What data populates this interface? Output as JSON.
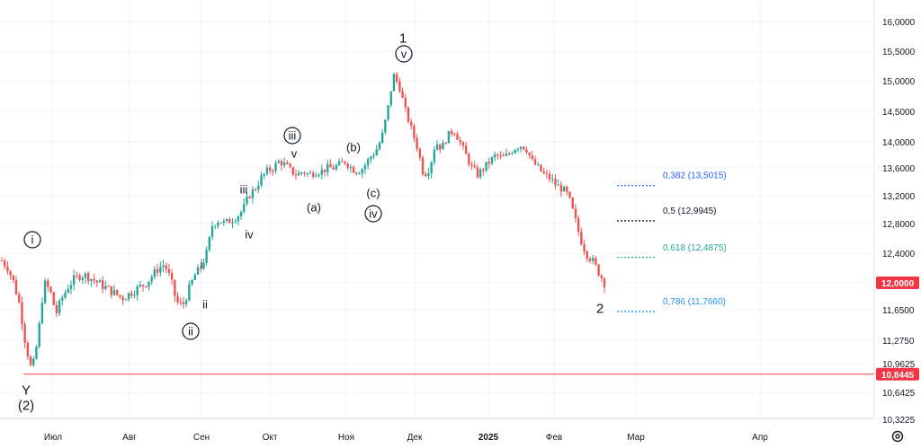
{
  "chart_data": {
    "type": "candlestick",
    "y_ticks": [
      "16,0000",
      "15,5000",
      "15,0000",
      "14,5000",
      "14,0000",
      "13,6000",
      "13,2000",
      "12,8000",
      "12,4000",
      "12,0000",
      "11,6500",
      "11,2750",
      "10,9625",
      "10,6425",
      "10,3225"
    ],
    "x_ticks": [
      {
        "label": "Июл",
        "bold": false
      },
      {
        "label": "Авг",
        "bold": false
      },
      {
        "label": "Сен",
        "bold": false
      },
      {
        "label": "Окт",
        "bold": false
      },
      {
        "label": "Ноя",
        "bold": false
      },
      {
        "label": "Дек",
        "bold": false
      },
      {
        "label": "2025",
        "bold": true
      },
      {
        "label": "Фев",
        "bold": false
      },
      {
        "label": "Мар",
        "bold": false
      },
      {
        "label": "Апр",
        "bold": false
      }
    ],
    "price_path": [
      12.3,
      12.2,
      12.0,
      11.7,
      11.2,
      10.85,
      11.3,
      12.0,
      11.9,
      11.6,
      11.8,
      11.95,
      12.05,
      12.1,
      12.1,
      12.05,
      12.0,
      11.95,
      11.9,
      11.85,
      11.8,
      11.85,
      11.9,
      11.95,
      12.0,
      12.1,
      12.2,
      12.25,
      12.05,
      11.75,
      11.7,
      11.9,
      12.1,
      12.2,
      12.4,
      12.8,
      12.85,
      12.8,
      12.85,
      12.9,
      13.0,
      13.2,
      13.3,
      13.45,
      13.55,
      13.6,
      13.7,
      13.65,
      13.55,
      13.5,
      13.55,
      13.5,
      13.55,
      13.55,
      13.6,
      13.6,
      13.65,
      13.7,
      13.6,
      13.55,
      13.6,
      13.75,
      13.85,
      14.05,
      14.5,
      15.1,
      14.9,
      14.5,
      14.2,
      13.9,
      13.5,
      13.6,
      14.0,
      13.9,
      14.1,
      14.2,
      14.0,
      13.8,
      13.6,
      13.5,
      13.6,
      13.7,
      13.8,
      13.75,
      13.8,
      13.9,
      13.95,
      13.9,
      13.7,
      13.6,
      13.5,
      13.45,
      13.35,
      13.3,
      13.2,
      12.9,
      12.6,
      12.4,
      12.3,
      12.15,
      12.0
    ],
    "fib_levels": [
      {
        "label": "0,382 (13,5015)",
        "value": 13.5015,
        "color": "#2962ff"
      },
      {
        "label": "0,5 (12,9945)",
        "value": 12.9945,
        "color": "#131722"
      },
      {
        "label": "0,618 (12,4875)",
        "value": 12.4875,
        "color": "#22ab94"
      },
      {
        "label": "0,786 (11,7660)",
        "value": 11.766,
        "color": "#2196f3"
      }
    ],
    "horizontal_line": {
      "value": 10.8445,
      "label": "10,8445",
      "color": "#f23645"
    },
    "last_price": {
      "value": 12.0,
      "label": "12,0000",
      "color": "#f23645"
    },
    "wave_labels": [
      {
        "text": "1",
        "circled": false,
        "big": true
      },
      {
        "text": "v",
        "circled": true,
        "big": false
      },
      {
        "text": "i",
        "circled": true,
        "big": false
      },
      {
        "text": "ii",
        "circled": true,
        "big": false
      },
      {
        "text": "iii",
        "circled": true,
        "big": false
      },
      {
        "text": "iv",
        "circled": true,
        "big": false
      },
      {
        "text": "i",
        "circled": false,
        "big": false
      },
      {
        "text": "ii",
        "circled": false,
        "big": false
      },
      {
        "text": "iii",
        "circled": false,
        "big": false
      },
      {
        "text": "iv",
        "circled": false,
        "big": false
      },
      {
        "text": "v",
        "circled": false,
        "big": false
      },
      {
        "text": "(a)",
        "circled": false,
        "big": false
      },
      {
        "text": "(b)",
        "circled": false,
        "big": false
      },
      {
        "text": "(c)",
        "circled": false,
        "big": false
      },
      {
        "text": "Y",
        "circled": false,
        "big": true
      },
      {
        "text": "(2)",
        "circled": false,
        "big": true
      },
      {
        "text": "2",
        "circled": false,
        "big": true
      }
    ],
    "colors": {
      "up": "#26a69a",
      "down": "#ef5350",
      "grid": "#f0f3fa",
      "axis": "#e0e3eb"
    }
  },
  "ui": {
    "settings_icon": "gear-icon"
  }
}
